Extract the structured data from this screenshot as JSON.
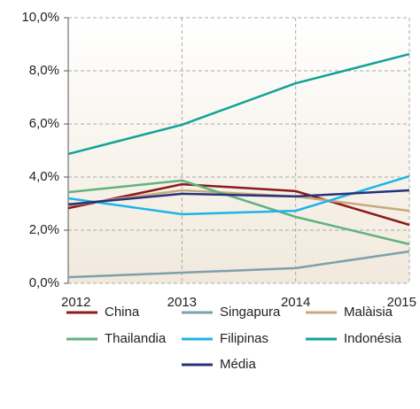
{
  "chart_data": {
    "type": "line",
    "categories": [
      "2012",
      "2013",
      "2014",
      "2015"
    ],
    "ylim": [
      0,
      10
    ],
    "yticks": [
      {
        "value": 0,
        "label": "0,0%"
      },
      {
        "value": 2,
        "label": "2,0%"
      },
      {
        "value": 4,
        "label": "4,0%"
      },
      {
        "value": 6,
        "label": "6,0%"
      },
      {
        "value": 8,
        "label": "8,0%"
      },
      {
        "value": 10,
        "label": "10,0%"
      }
    ],
    "grid": true,
    "series": [
      {
        "name": "China",
        "color": "#8b1a1a",
        "values": [
          2.83,
          3.73,
          3.47,
          2.2
        ]
      },
      {
        "name": "Singapura",
        "color": "#7f9fae",
        "values": [
          0.23,
          0.4,
          0.57,
          1.2
        ]
      },
      {
        "name": "Malàisia",
        "color": "#c8a97e",
        "values": [
          2.93,
          3.5,
          3.27,
          2.73
        ]
      },
      {
        "name": "Thailandia",
        "color": "#5fb37f",
        "values": [
          3.43,
          3.87,
          2.5,
          1.47
        ]
      },
      {
        "name": "Filipinas",
        "color": "#1eb4e6",
        "values": [
          3.2,
          2.6,
          2.73,
          4.03
        ]
      },
      {
        "name": "Indonésia",
        "color": "#10a394",
        "values": [
          4.87,
          5.97,
          7.53,
          8.63
        ]
      },
      {
        "name": "Média",
        "color": "#26337a",
        "values": [
          2.97,
          3.37,
          3.27,
          3.5
        ]
      }
    ]
  }
}
